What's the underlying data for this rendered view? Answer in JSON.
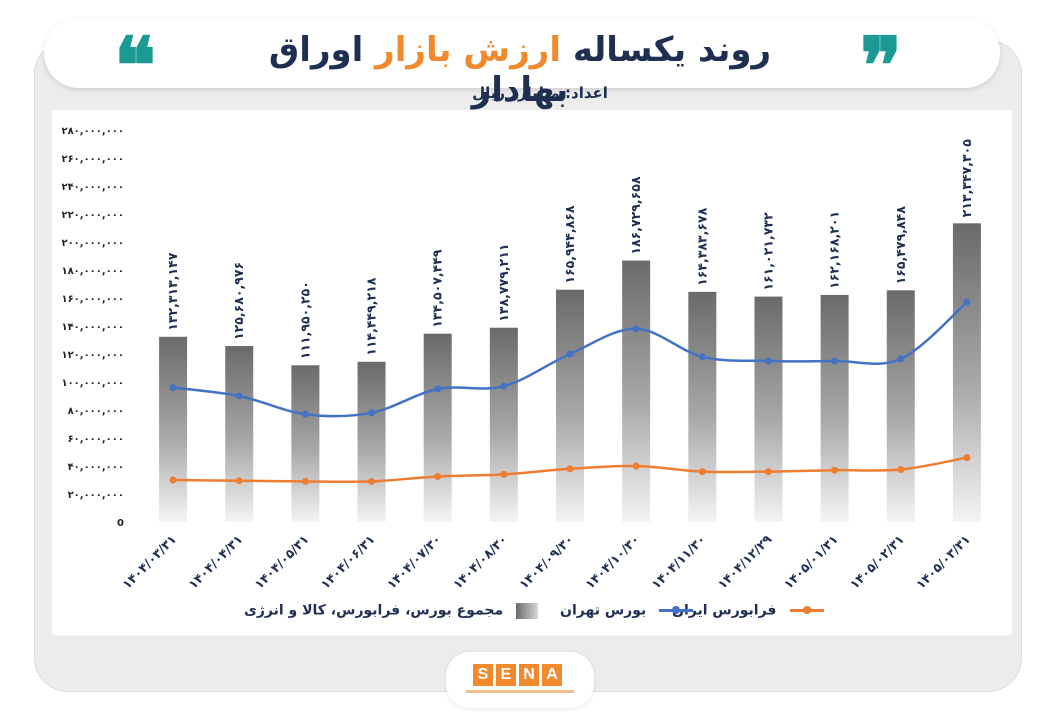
{
  "header": {
    "title_part1": "روند یکساله ",
    "title_highlight": "ارزش بازار",
    "title_part2": " اوراق بهادار",
    "unit_label": "اعداد: میلیارد ریال",
    "quote_open": "❝",
    "quote_close": "❞"
  },
  "logo": {
    "word": "SENA"
  },
  "colors": {
    "accent_teal": "#1a9a93",
    "accent_orange": "#f08a2c",
    "title_navy": "#1f2f52",
    "tehran_line": "#4472c4",
    "farabourse_line": "#ed7d31",
    "bar_dark": "#6a6a6a"
  },
  "legend": {
    "total": "مجموع بورس، فرابورس، کالا و انرژی",
    "tehran": "بورس تهران",
    "farabourse": "فرابورس ایران"
  },
  "chart_data": {
    "type": "bar",
    "ylim": [
      0,
      280000000
    ],
    "y_ticks": [
      "0",
      "۲۰,۰۰۰,۰۰۰",
      "۴۰,۰۰۰,۰۰۰",
      "۶۰,۰۰۰,۰۰۰",
      "۸۰,۰۰۰,۰۰۰",
      "۱۰۰,۰۰۰,۰۰۰",
      "۱۲۰,۰۰۰,۰۰۰",
      "۱۴۰,۰۰۰,۰۰۰",
      "۱۶۰,۰۰۰,۰۰۰",
      "۱۸۰,۰۰۰,۰۰۰",
      "۲۰۰,۰۰۰,۰۰۰",
      "۲۲۰,۰۰۰,۰۰۰",
      "۲۴۰,۰۰۰,۰۰۰",
      "۲۶۰,۰۰۰,۰۰۰",
      "۲۸۰,۰۰۰,۰۰۰"
    ],
    "categories": [
      "۱۴۰۴/۰۳/۳۱",
      "۱۴۰۴/۰۴/۳۱",
      "۱۴۰۴/۰۵/۳۱",
      "۱۴۰۴/۰۶/۳۱",
      "۱۴۰۴/۰۷/۳۰",
      "۱۴۰۴/۰۸/۳۰",
      "۱۴۰۴/۰۹/۳۰",
      "۱۴۰۴/۱۰/۳۰",
      "۱۴۰۴/۱۱/۳۰",
      "۱۴۰۴/۱۲/۲۹",
      "۱۴۰۵/۰۱/۳۱",
      "۱۴۰۵/۰۲/۳۱",
      "۱۴۰۵/۰۳/۳۱"
    ],
    "series": [
      {
        "name": "مجموع بورس، فرابورس، کالا و انرژی",
        "type": "bar",
        "values": [
          132313147,
          125680976,
          111950250,
          114449218,
          134507449,
          138779211,
          165944868,
          186729658,
          164383678,
          161021732,
          162168201,
          165479848,
          213347305
        ],
        "labels": [
          "۱۳۲,۳۱۳,۱۴۷",
          "۱۲۵,۶۸۰,۹۷۶",
          "۱۱۱,۹۵۰,۲۵۰",
          "۱۱۴,۴۴۹,۲۱۸",
          "۱۳۴,۵۰۷,۴۴۹",
          "۱۳۸,۷۷۹,۲۱۱",
          "۱۶۵,۹۴۴,۸۶۸",
          "۱۸۶,۷۲۹,۶۵۸",
          "۱۶۴,۳۸۳,۶۷۸",
          "۱۶۱,۰۲۱,۷۳۲",
          "۱۶۲,۱۶۸,۲۰۱",
          "۱۶۵,۴۷۹,۸۴۸",
          "۲۱۳,۳۴۷,۳۰۵"
        ]
      },
      {
        "name": "بورس تهران",
        "type": "line",
        "values": [
          96000000,
          90000000,
          77000000,
          78000000,
          95000000,
          97000000,
          120000000,
          138000000,
          118000000,
          115000000,
          115000000,
          116500000,
          157000000
        ]
      },
      {
        "name": "فرابورس ایران",
        "type": "line",
        "values": [
          30000000,
          29500000,
          29000000,
          29000000,
          32500000,
          34000000,
          38000000,
          40000000,
          36000000,
          36000000,
          37000000,
          37500000,
          46000000
        ]
      }
    ]
  }
}
